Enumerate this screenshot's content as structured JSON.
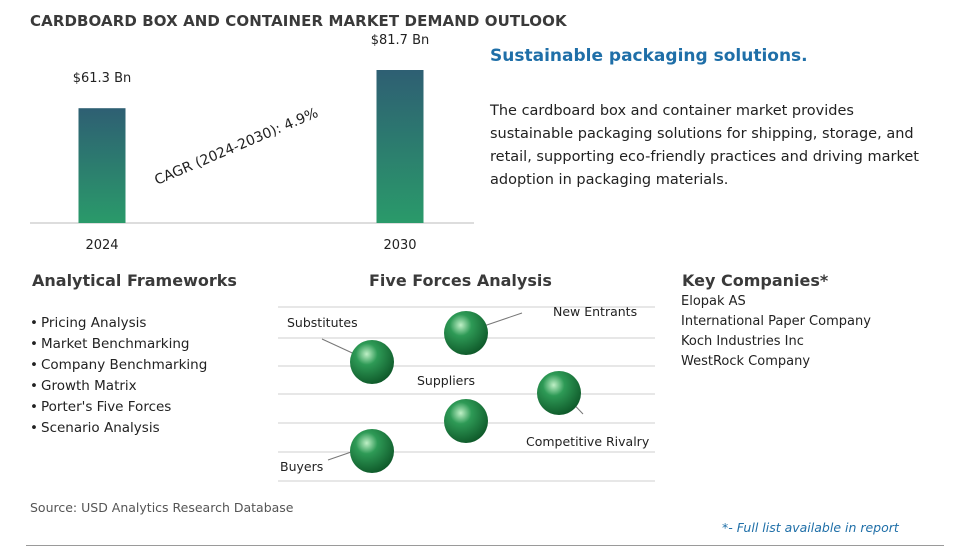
{
  "header": {
    "title": "CARDBOARD BOX AND CONTAINER MARKET DEMAND OUTLOOK"
  },
  "chart_data": {
    "type": "bar",
    "categories": [
      "2024",
      "2030"
    ],
    "values": [
      61.3,
      81.7
    ],
    "value_labels": [
      "$61.3 Bn",
      "$81.7 Bn"
    ],
    "annotation": "CAGR (2024-2030):  4.9%",
    "bar_color_top": "#2e5f73",
    "bar_color_bottom": "#2a9a6a"
  },
  "summary": {
    "heading": "Sustainable packaging solutions.",
    "text": "The cardboard box and container market provides sustainable packaging solutions for shipping, storage, and retail, supporting eco-friendly practices and driving market adoption in packaging materials."
  },
  "frameworks": {
    "heading": "Analytical Frameworks",
    "items": [
      "Pricing Analysis",
      "Market Benchmarking",
      "Company Benchmarking",
      "Growth Matrix",
      "Porter's Five Forces",
      "Scenario Analysis"
    ]
  },
  "five_forces": {
    "heading": "Five Forces Analysis",
    "labels": {
      "substitutes": "Substitutes",
      "new_entrants": "New Entrants",
      "suppliers": "Suppliers",
      "competitive_rivalry": "Competitive Rivalry",
      "buyers": "Buyers"
    },
    "sphere_color": "#2e9a56"
  },
  "companies": {
    "heading": "Key Companies*",
    "items": [
      "Elopak AS",
      "International Paper Company",
      "Koch Industries Inc",
      "WestRock Company"
    ]
  },
  "footer": {
    "source": "Source: USD Analytics Research Database",
    "note": "*- Full list available in report"
  }
}
